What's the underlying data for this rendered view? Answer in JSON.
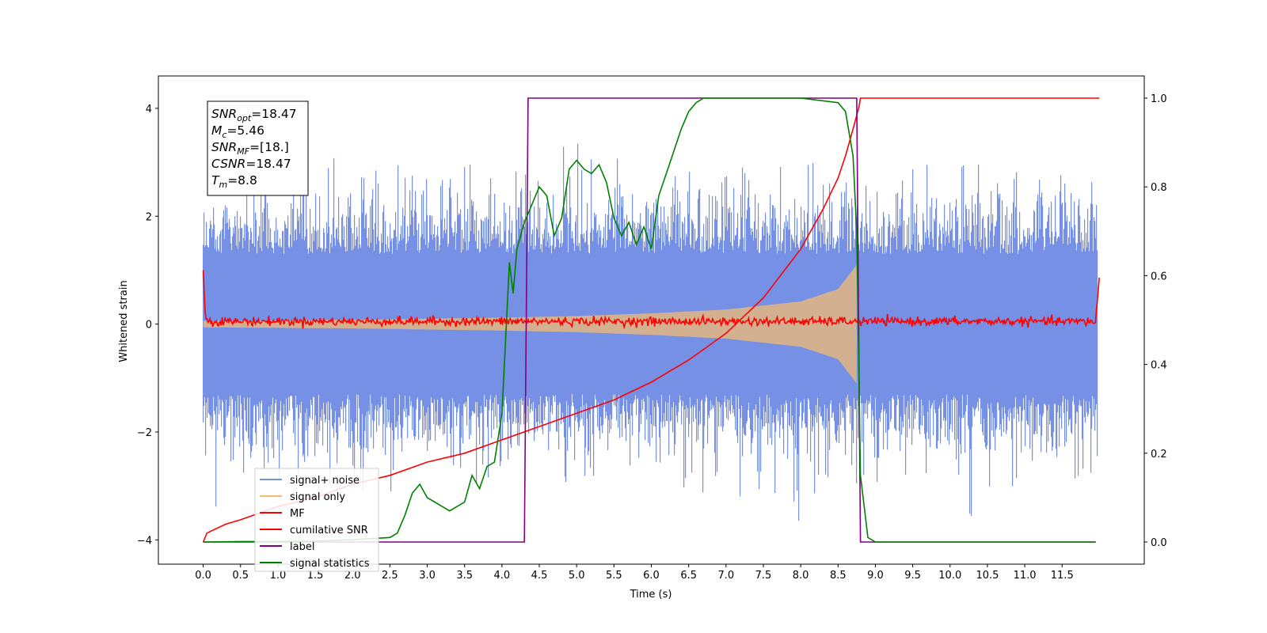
{
  "chart_data": {
    "type": "line",
    "xlabel": "Time (s)",
    "ylabel_left": "Whitened strain",
    "ylabel_right": "",
    "xlim": [
      -0.6,
      12.6
    ],
    "ylim_left": [
      -4.45,
      4.6
    ],
    "ylim_right": [
      -0.05,
      1.05
    ],
    "x_ticks": [
      "0.0",
      "0.5",
      "1.0",
      "1.5",
      "2.0",
      "2.5",
      "3.0",
      "3.5",
      "4.0",
      "4.5",
      "5.0",
      "5.5",
      "6.0",
      "6.5",
      "7.0",
      "7.5",
      "8.0",
      "8.5",
      "9.0",
      "9.5",
      "10.0",
      "10.5",
      "11.0",
      "11.5"
    ],
    "y_ticks_left": [
      "−4",
      "−2",
      "0",
      "2",
      "4"
    ],
    "y_ticks_right": [
      "0.0",
      "0.2",
      "0.4",
      "0.6",
      "0.8",
      "1.0"
    ],
    "grid": false,
    "legend_position": "lower-left",
    "annotation": {
      "snr_opt": {
        "sym": "SNR",
        "sub": "opt",
        "val": "=18.47"
      },
      "mc": {
        "sym": "M",
        "sub": "c",
        "val": "=5.46"
      },
      "snr_mf": {
        "sym": "SNR",
        "sub": "MF",
        "val": "=[18.]"
      },
      "csnr": {
        "sym": "CSNR",
        "sub": "",
        "val": "=18.47"
      },
      "tm": {
        "sym": "T",
        "sub": "m",
        "val": "=8.8"
      }
    },
    "series": [
      {
        "name": "signal+ noise",
        "color": "#7690e6",
        "axis": "left",
        "style": "dense noise band",
        "envelope_x": [
          0.0,
          0.5,
          1.0,
          2.0,
          3.0,
          4.0,
          5.0,
          6.0,
          7.0,
          8.0,
          8.5,
          8.75,
          9.0,
          10.0,
          11.0,
          12.0
        ],
        "envelope_hi": [
          2.1,
          2.7,
          3.0,
          3.3,
          2.9,
          3.0,
          3.4,
          3.2,
          2.9,
          3.1,
          2.9,
          3.1,
          2.9,
          3.0,
          3.2,
          2.8
        ],
        "envelope_lo": [
          -3.8,
          -3.0,
          -2.9,
          -3.2,
          -3.1,
          -3.0,
          -3.1,
          -2.9,
          -3.4,
          -4.0,
          -3.0,
          -3.0,
          -2.9,
          -3.9,
          -3.0,
          -2.8
        ],
        "dense_hi": 1.3,
        "dense_lo": -1.3
      },
      {
        "name": "signal only",
        "color": "#f6bc6e",
        "axis": "left",
        "style": "chirp envelope",
        "x": [
          0.0,
          1.0,
          2.0,
          3.0,
          4.0,
          5.0,
          6.0,
          7.0,
          8.0,
          8.5,
          8.75
        ],
        "amplitude": [
          0.06,
          0.07,
          0.08,
          0.1,
          0.12,
          0.15,
          0.2,
          0.27,
          0.42,
          0.65,
          1.1
        ]
      },
      {
        "name": "MF",
        "color": "#ff0000",
        "axis": "left",
        "style": "noisy around zero",
        "x": [
          0.0,
          0.03,
          0.1,
          11.95,
          12.0
        ],
        "values": [
          1.0,
          0.1,
          0.05,
          0.05,
          0.9
        ],
        "noise_amplitude": 0.07
      },
      {
        "name": "cumilative SNR",
        "color": "#ff0000",
        "axis": "right",
        "x": [
          0.0,
          0.05,
          0.3,
          0.5,
          1.0,
          1.5,
          2.0,
          2.5,
          3.0,
          3.5,
          4.0,
          4.5,
          5.0,
          5.5,
          6.0,
          6.5,
          7.0,
          7.5,
          8.0,
          8.3,
          8.5,
          8.6,
          8.7,
          8.78,
          8.8,
          12.0
        ],
        "values": [
          0.0,
          0.02,
          0.04,
          0.05,
          0.08,
          0.1,
          0.13,
          0.15,
          0.18,
          0.2,
          0.23,
          0.26,
          0.29,
          0.32,
          0.36,
          0.41,
          0.47,
          0.55,
          0.66,
          0.75,
          0.82,
          0.87,
          0.93,
          0.98,
          1.0,
          1.0
        ]
      },
      {
        "name": "label",
        "color": "#800080",
        "axis": "right",
        "x": [
          0.0,
          4.3,
          4.35,
          8.75,
          8.8,
          11.95
        ],
        "values": [
          0.0,
          0.0,
          1.0,
          1.0,
          0.0,
          0.0
        ]
      },
      {
        "name": "signal statistics",
        "color": "#008000",
        "axis": "right",
        "x": [
          0.0,
          0.5,
          1.0,
          1.5,
          2.0,
          2.5,
          2.6,
          2.7,
          2.8,
          2.9,
          3.0,
          3.1,
          3.2,
          3.3,
          3.4,
          3.5,
          3.6,
          3.7,
          3.8,
          3.9,
          4.0,
          4.1,
          4.15,
          4.2,
          4.3,
          4.4,
          4.5,
          4.6,
          4.7,
          4.8,
          4.9,
          5.0,
          5.1,
          5.2,
          5.3,
          5.4,
          5.5,
          5.6,
          5.7,
          5.8,
          5.9,
          6.0,
          6.1,
          6.2,
          6.3,
          6.4,
          6.5,
          6.6,
          6.7,
          7.0,
          7.5,
          8.0,
          8.5,
          8.6,
          8.7,
          8.75,
          8.8,
          8.9,
          9.0,
          9.5,
          10.0,
          11.0,
          11.95
        ],
        "values": [
          0.0,
          0.001,
          0.001,
          0.002,
          0.005,
          0.01,
          0.02,
          0.06,
          0.11,
          0.13,
          0.1,
          0.09,
          0.08,
          0.07,
          0.08,
          0.09,
          0.15,
          0.12,
          0.17,
          0.18,
          0.29,
          0.63,
          0.56,
          0.66,
          0.72,
          0.76,
          0.8,
          0.78,
          0.69,
          0.73,
          0.84,
          0.86,
          0.84,
          0.83,
          0.85,
          0.81,
          0.73,
          0.69,
          0.72,
          0.67,
          0.71,
          0.66,
          0.78,
          0.83,
          0.88,
          0.93,
          0.97,
          0.99,
          1.0,
          1.0,
          1.0,
          1.0,
          0.99,
          0.97,
          0.87,
          0.7,
          0.15,
          0.01,
          0.0,
          0.0,
          0.0,
          0.0,
          0.0
        ]
      }
    ]
  }
}
